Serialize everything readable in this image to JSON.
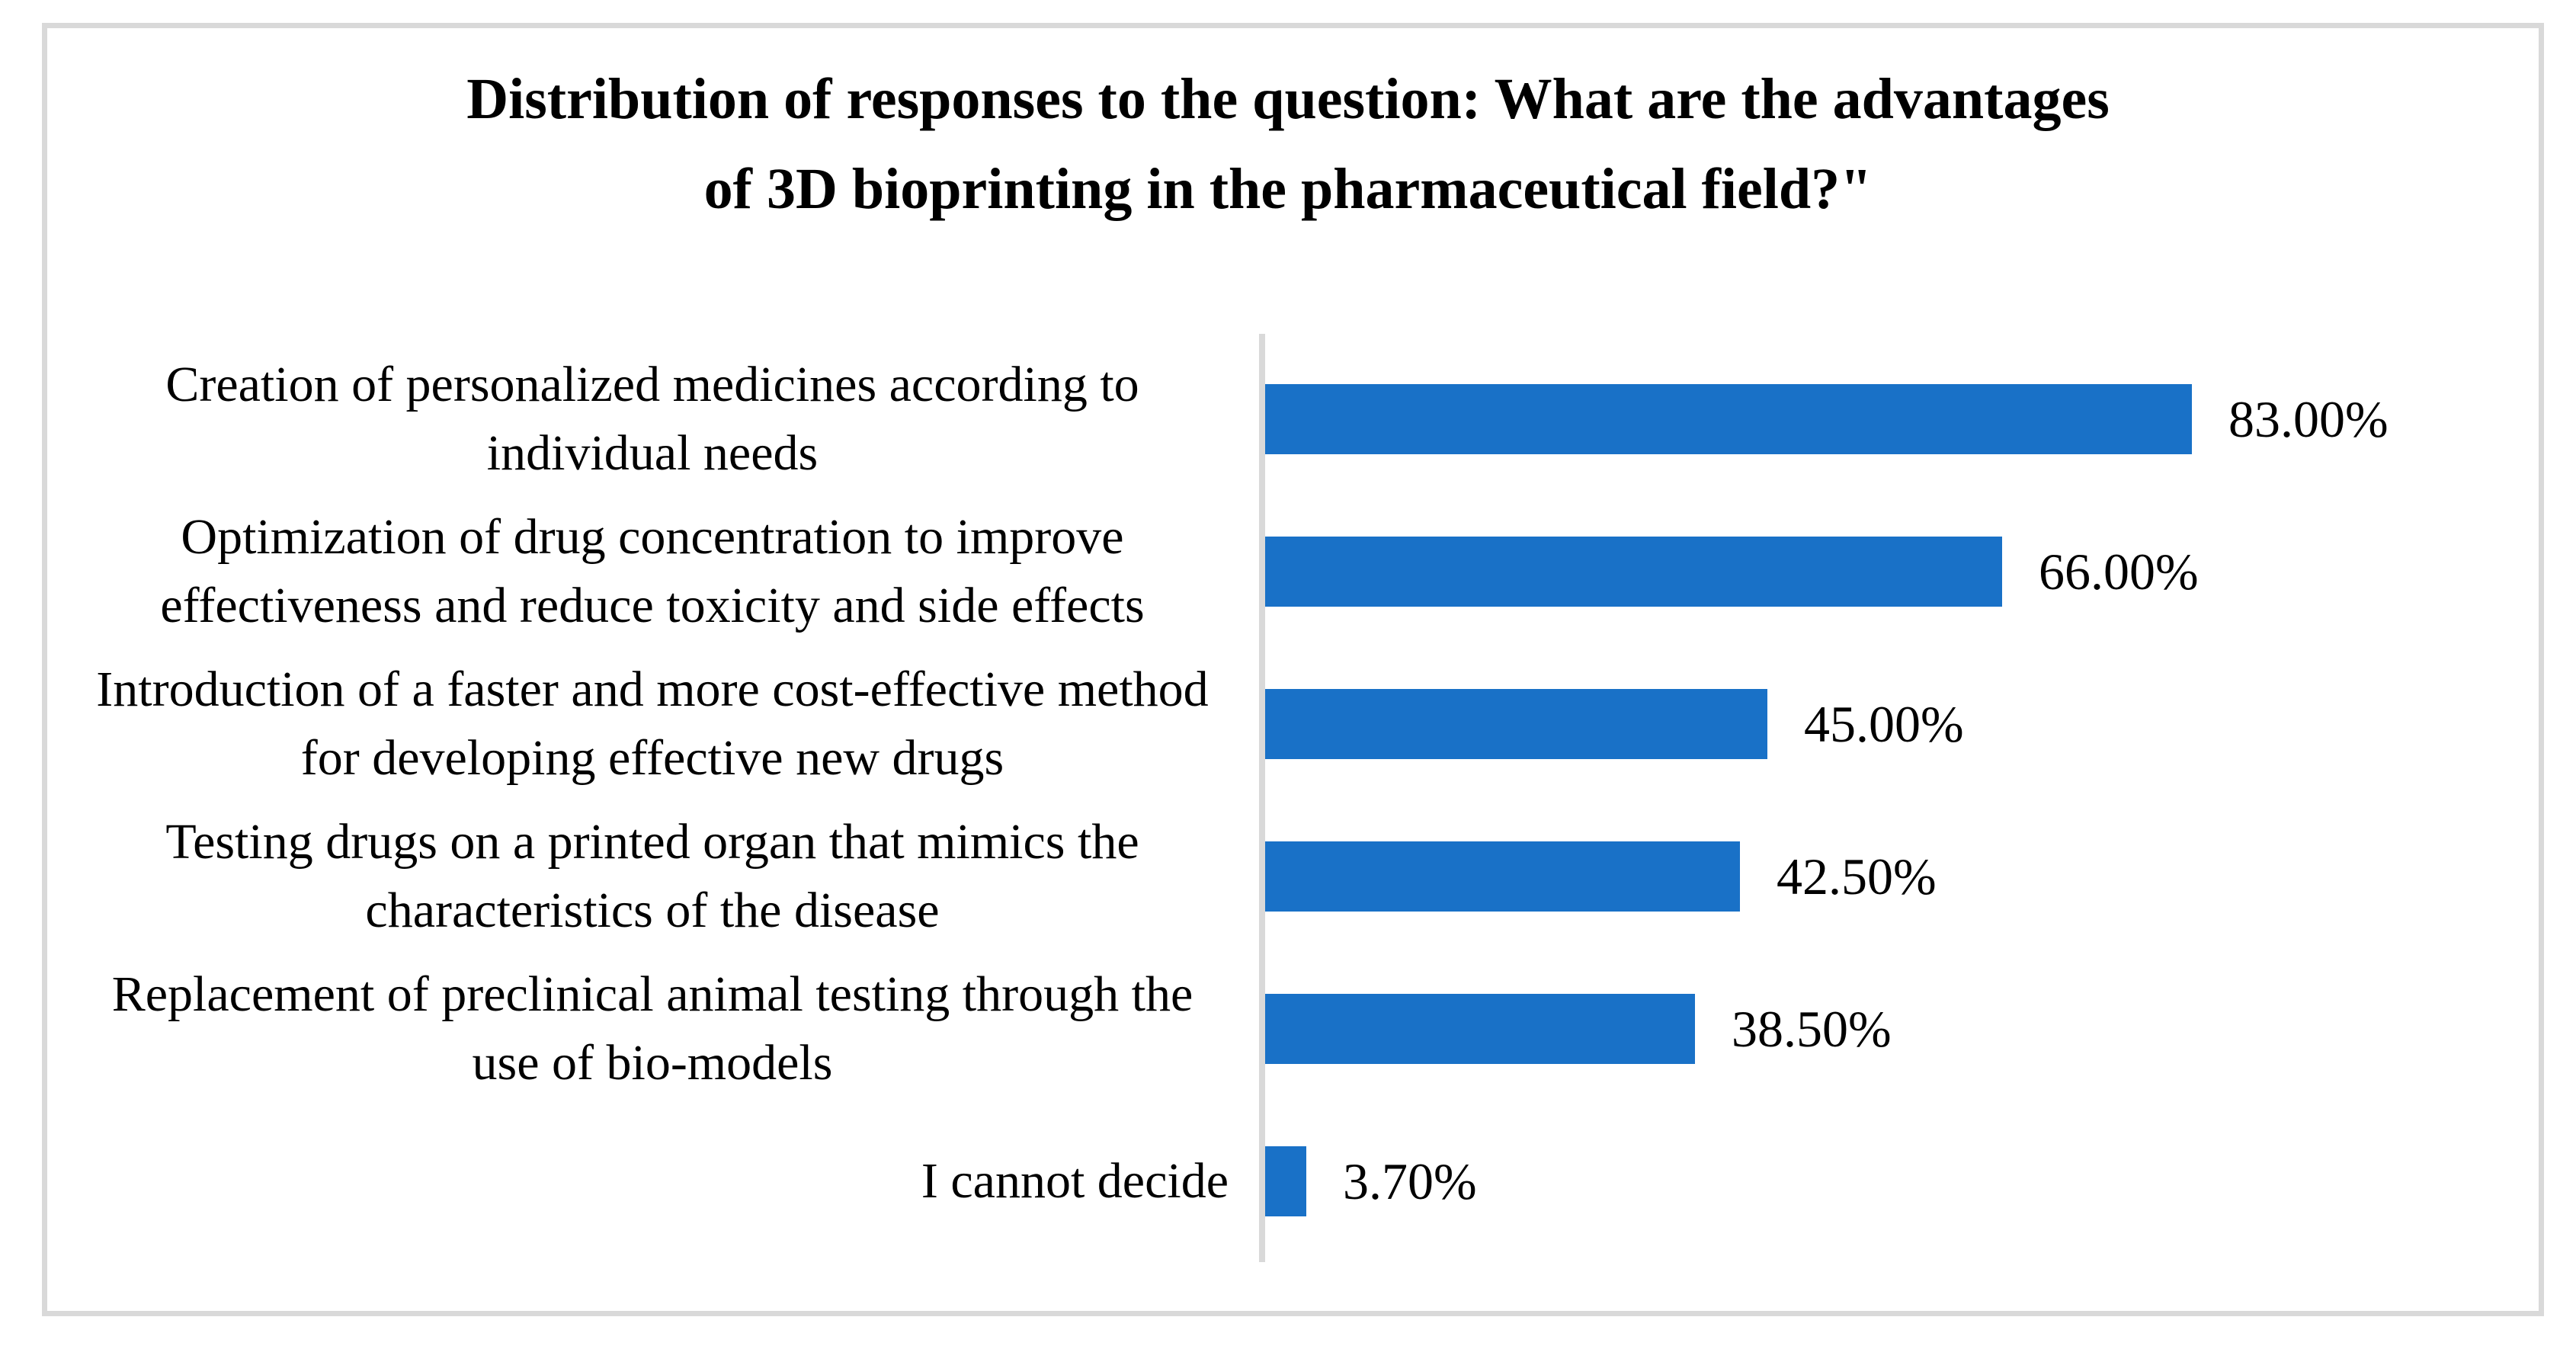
{
  "chart_data": {
    "type": "bar",
    "orientation": "horizontal",
    "title": "Distribution of responses to the question: What are the advantages of 3D bioprinting in the pharmaceutical field?\"",
    "title_lines": [
      "Distribution of responses to the question: What are the advantages",
      "of 3D bioprinting in the pharmaceutical field?\""
    ],
    "categories": [
      "Creation of personalized medicines according to individual needs",
      "Optimization of drug concentration to improve effectiveness and reduce toxicity and side effects",
      "Introduction of a faster and more cost-effective method for developing effective new drugs",
      "Testing drugs on a printed organ that mimics the characteristics of the disease",
      "Replacement of preclinical animal testing through the use of bio-models",
      "I cannot decide"
    ],
    "values": [
      83.0,
      66.0,
      45.0,
      42.5,
      38.5,
      3.7
    ],
    "value_labels": [
      "83.00%",
      "66.00%",
      "45.00%",
      "42.50%",
      "38.50%",
      "3.70%"
    ],
    "xlabel": "",
    "ylabel": "",
    "xlim": [
      0,
      100
    ],
    "grid": false,
    "legend_position": "none",
    "bar_color": "#1971C7",
    "axis_line_color": "#D9D9D9",
    "frame_border_color": "#D9D9D9",
    "background_color": "#FFFFFF"
  }
}
